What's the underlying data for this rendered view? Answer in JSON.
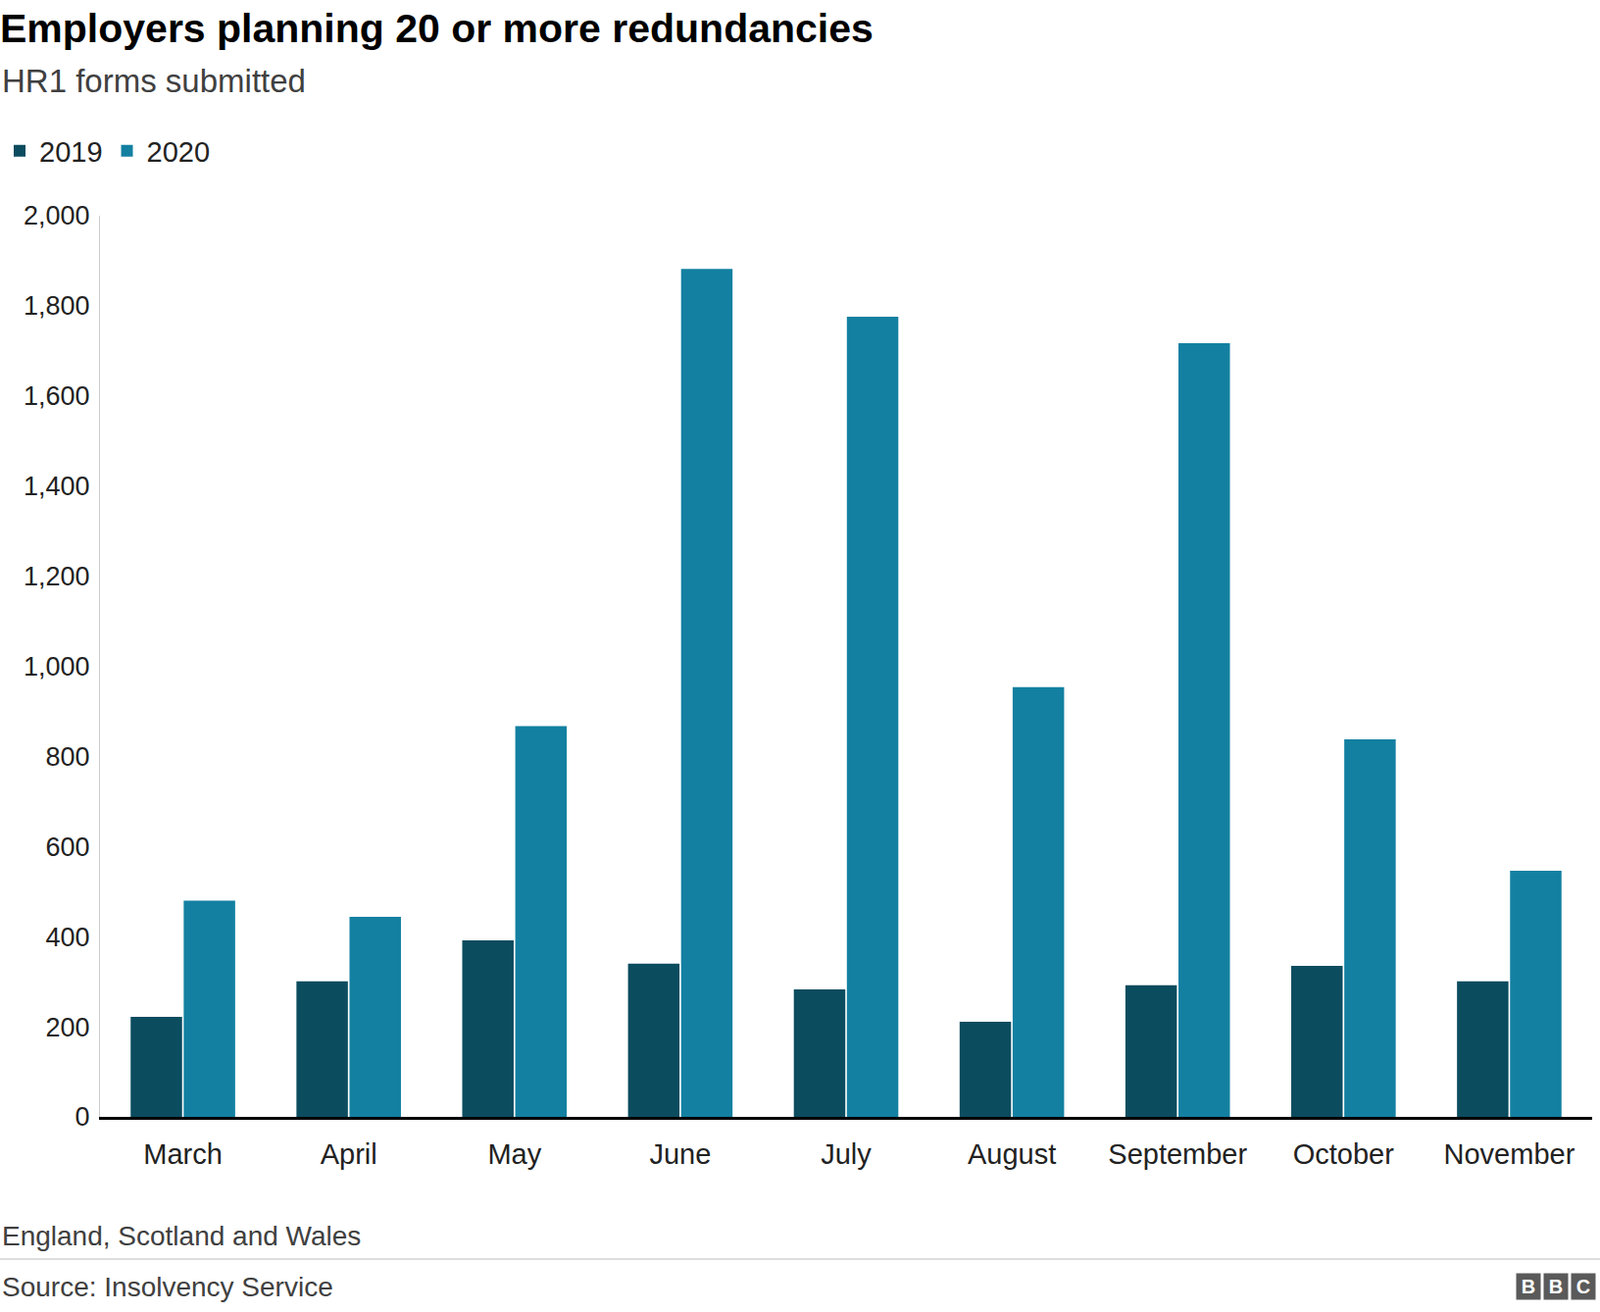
{
  "chart_data": {
    "type": "bar",
    "title": "Employers planning 20 or more redundancies",
    "subtitle": "HR1 forms submitted",
    "categories": [
      "March",
      "April",
      "May",
      "June",
      "July",
      "August",
      "September",
      "October",
      "November"
    ],
    "series": [
      {
        "name": "2019",
        "color": "#0b4c5f",
        "values": [
          222,
          301,
          392,
          340,
          283,
          211,
          292,
          335,
          301
        ]
      },
      {
        "name": "2020",
        "color": "#1380a1",
        "values": [
          480,
          444,
          867,
          1882,
          1776,
          954,
          1717,
          838,
          546
        ]
      }
    ],
    "ylim": [
      0,
      2000
    ],
    "yticks": [
      0,
      200,
      400,
      600,
      800,
      {
        "value": 1000,
        "label": "1,000"
      },
      {
        "value": 1200,
        "label": "1,200"
      },
      {
        "value": 1400,
        "label": "1,400"
      },
      {
        "value": 1600,
        "label": "1,600"
      },
      {
        "value": 1800,
        "label": "1,800"
      },
      {
        "value": 2000,
        "label": "2,000"
      }
    ],
    "grid": false,
    "legend": "top-left",
    "note": "England, Scotland and Wales",
    "source": "Source: Insolvency Service",
    "logo": "BBC"
  }
}
